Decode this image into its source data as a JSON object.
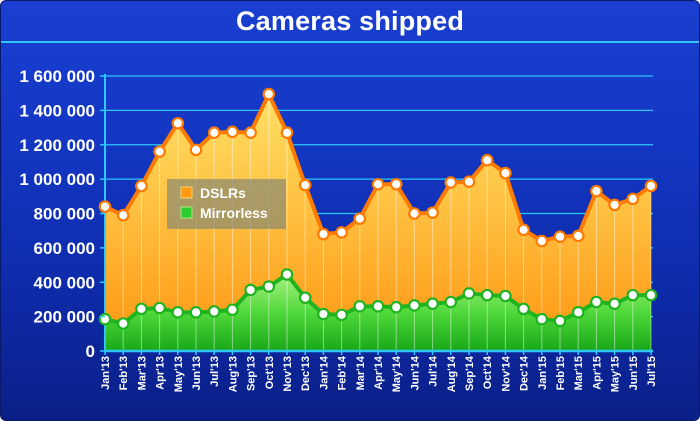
{
  "title": "Cameras shipped",
  "chart_data": {
    "type": "area",
    "title": "Cameras shipped",
    "xlabel": "",
    "ylabel": "",
    "ylim": [
      0,
      1600000
    ],
    "yticks": [
      0,
      200000,
      400000,
      600000,
      800000,
      1000000,
      1200000,
      1400000,
      1600000
    ],
    "ytick_labels": [
      "0",
      "200 000",
      "400 000",
      "600 000",
      "800 000",
      "1 000 000",
      "1 200 000",
      "1 400 000",
      "1 600 000"
    ],
    "grid": true,
    "legend_position": "upper-left",
    "categories": [
      "Jan'13",
      "Feb'13",
      "Mar'13",
      "Apr'13",
      "May'13",
      "Jun'13",
      "Jul'13",
      "Aug'13",
      "Sep'13",
      "Oct'13",
      "Nov'13",
      "Dec'13",
      "Jan'14",
      "Feb'14",
      "Mar'14",
      "Apr'14",
      "May'14",
      "Jun'14",
      "Jul'14",
      "Aug'14",
      "Sep'14",
      "Oct'14",
      "Nov'14",
      "Dec'14",
      "Jan'15",
      "Feb'15",
      "Mar'15",
      "Apr'15",
      "May'15",
      "Jun'15",
      "Jul'15"
    ],
    "series": [
      {
        "name": "DSLRs",
        "color": "#ff9a10",
        "values": [
          840000,
          790000,
          960000,
          1160000,
          1325000,
          1170000,
          1270000,
          1275000,
          1270000,
          1495000,
          1270000,
          965000,
          680000,
          690000,
          770000,
          970000,
          970000,
          800000,
          805000,
          980000,
          985000,
          1110000,
          1035000,
          705000,
          640000,
          665000,
          670000,
          930000,
          850000,
          885000,
          960000
        ]
      },
      {
        "name": "Mirrorless",
        "color": "#2ecc2e",
        "values": [
          185000,
          160000,
          245000,
          250000,
          225000,
          225000,
          230000,
          240000,
          355000,
          375000,
          445000,
          310000,
          215000,
          210000,
          260000,
          260000,
          255000,
          265000,
          275000,
          285000,
          335000,
          325000,
          320000,
          245000,
          185000,
          175000,
          225000,
          285000,
          275000,
          325000,
          325000
        ]
      }
    ]
  }
}
